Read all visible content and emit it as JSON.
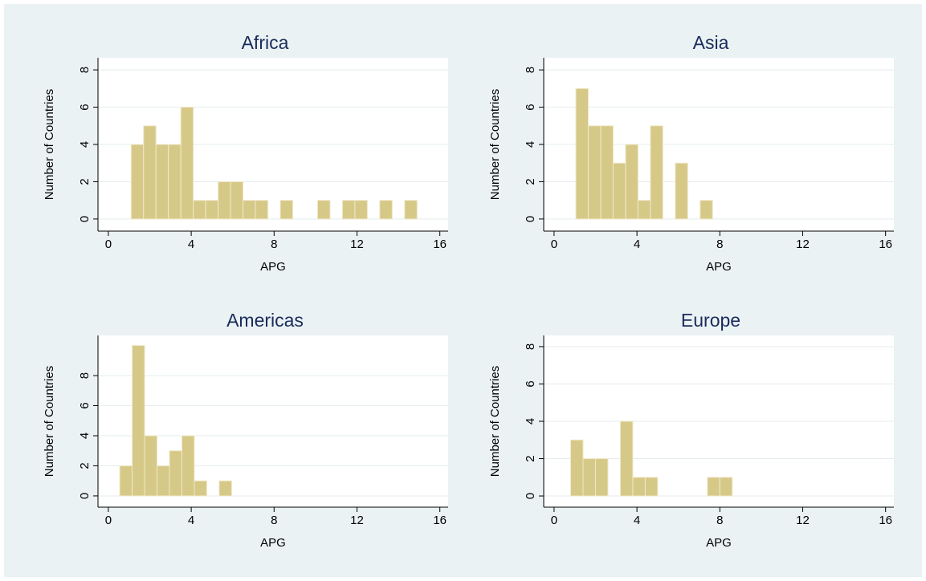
{
  "chart_data": [
    {
      "type": "histogram",
      "title": "Africa",
      "xlabel": "APG",
      "ylabel": "Number of Countries",
      "bins": [
        1.1,
        1.7,
        2.3,
        2.9,
        3.5,
        4.1,
        4.7,
        5.3,
        5.9,
        6.5,
        7.1,
        7.7,
        8.3,
        8.9,
        9.5,
        10.1,
        10.7,
        11.3,
        11.9,
        12.5,
        13.1,
        13.7,
        14.3,
        14.9
      ],
      "values": [
        4,
        5,
        4,
        4,
        6,
        1,
        1,
        2,
        2,
        1,
        1,
        0,
        1,
        0,
        0,
        1,
        0,
        1,
        1,
        0,
        1,
        0,
        1
      ],
      "xlim": [
        -0.5,
        16.4
      ],
      "xticks": [
        0,
        4,
        8,
        12,
        16
      ],
      "ylim": [
        -0.65,
        8.65
      ],
      "yticks": [
        0,
        2,
        4,
        6,
        8
      ],
      "color": "#d6c988",
      "grid": true
    },
    {
      "type": "histogram",
      "title": "Asia",
      "xlabel": "APG",
      "ylabel": "Number of Countries",
      "bins": [
        1.05,
        1.65,
        2.25,
        2.85,
        3.45,
        4.05,
        4.65,
        5.25,
        5.85,
        6.45,
        7.05,
        7.65
      ],
      "values": [
        7,
        5,
        5,
        3,
        4,
        1,
        5,
        0,
        3,
        0,
        1
      ],
      "xlim": [
        -0.5,
        16.4
      ],
      "xticks": [
        0,
        4,
        8,
        12,
        16
      ],
      "ylim": [
        -0.65,
        8.65
      ],
      "yticks": [
        0,
        2,
        4,
        6,
        8
      ],
      "color": "#d6c988",
      "grid": true
    },
    {
      "type": "histogram",
      "title": "Americas",
      "xlabel": "APG",
      "ylabel": "Number of Countries",
      "bins": [
        0.55,
        1.15,
        1.75,
        2.35,
        2.95,
        3.55,
        4.15,
        4.75,
        5.35,
        5.95
      ],
      "values": [
        2,
        10,
        4,
        2,
        3,
        4,
        1,
        0,
        1
      ],
      "xlim": [
        -0.5,
        16.4
      ],
      "xticks": [
        0,
        4,
        8,
        12,
        16
      ],
      "ylim": [
        -0.75,
        10.67
      ],
      "yticks": [
        0,
        2,
        4,
        6,
        8
      ],
      "color": "#d6c988",
      "grid": true
    },
    {
      "type": "histogram",
      "title": "Europe",
      "xlabel": "APG",
      "ylabel": "Number of Countries",
      "bins": [
        0.8,
        1.4,
        2.0,
        2.6,
        3.2,
        3.8,
        4.4,
        5.0,
        5.6,
        6.2,
        6.8,
        7.4,
        8.0,
        8.6
      ],
      "values": [
        3,
        2,
        2,
        0,
        4,
        1,
        1,
        0,
        0,
        0,
        0,
        1,
        1
      ],
      "xlim": [
        -0.5,
        16.4
      ],
      "xticks": [
        0,
        4,
        8,
        12,
        16
      ],
      "ylim": [
        -0.6,
        8.6
      ],
      "yticks": [
        0,
        2,
        4,
        6,
        8
      ],
      "color": "#d6c988",
      "grid": true
    }
  ]
}
